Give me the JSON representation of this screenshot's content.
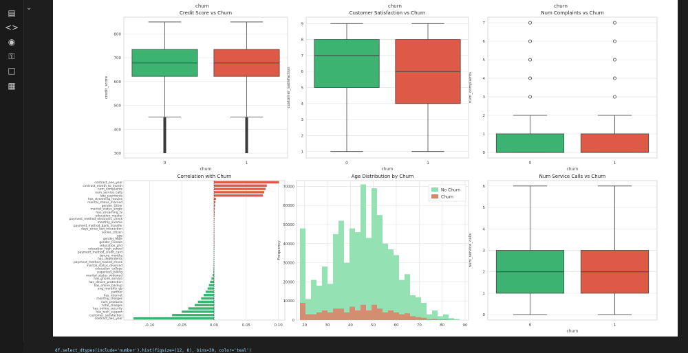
{
  "notebook": {
    "top_captions": [
      "churn",
      "churn",
      "churn"
    ],
    "code_line": "df.select_dtypes(include='number').hist(figsize=(12, 8), bins=30, color='teal')",
    "sidebar_icons": [
      "file-icon",
      "code-icon",
      "variables-icon",
      "key-icon",
      "folder-icon",
      "table-icon"
    ]
  },
  "colors": {
    "green": "#3cb371",
    "red": "#dc5a46",
    "green_light": "#8ee0b0",
    "red_light": "#d9856a"
  },
  "chart_data": [
    {
      "type": "box",
      "title": "Credit Score vs Churn",
      "xlabel": "churn",
      "ylabel": "credit_score",
      "categories": [
        "0",
        "1"
      ],
      "ylim": [
        280,
        870
      ],
      "yticks": [
        300,
        400,
        500,
        600,
        700,
        800
      ],
      "boxes": [
        {
          "q1": 622,
          "median": 678,
          "q3": 735,
          "whislo": 452,
          "whishi": 850,
          "outliers": [
            300,
            450
          ]
        },
        {
          "q1": 622,
          "median": 678,
          "q3": 735,
          "whislo": 452,
          "whishi": 850,
          "outliers": [
            300,
            450
          ]
        }
      ]
    },
    {
      "type": "box",
      "title": "Customer Satisfaction vs Churn",
      "xlabel": "churn",
      "ylabel": "customer_satisfaction",
      "categories": [
        "0",
        "1"
      ],
      "ylim": [
        0.6,
        9.4
      ],
      "yticks": [
        1,
        2,
        3,
        4,
        5,
        6,
        7,
        8,
        9
      ],
      "boxes": [
        {
          "q1": 5,
          "median": 7,
          "q3": 8,
          "whislo": 1,
          "whishi": 9,
          "outliers": []
        },
        {
          "q1": 4,
          "median": 6,
          "q3": 8,
          "whislo": 1,
          "whishi": 9,
          "outliers": []
        }
      ]
    },
    {
      "type": "box",
      "title": "Num Complaints vs Churn",
      "xlabel": "churn",
      "ylabel": "num_complaints",
      "categories": [
        "0",
        "1"
      ],
      "ylim": [
        -0.3,
        7.3
      ],
      "yticks": [
        0,
        1,
        2,
        3,
        4,
        5,
        6,
        7
      ],
      "boxes": [
        {
          "q1": 0,
          "median": 0,
          "q3": 1,
          "whislo": 0,
          "whishi": 2,
          "outliers": [
            3,
            4,
            5,
            6,
            7
          ]
        },
        {
          "q1": 0,
          "median": 0,
          "q3": 1,
          "whislo": 0,
          "whishi": 2,
          "outliers": [
            3,
            4,
            5,
            6,
            7
          ]
        }
      ]
    },
    {
      "type": "bar",
      "orientation": "horizontal",
      "title": "Correlation with Churn",
      "xlim": [
        -0.14,
        0.11
      ],
      "xticks": [
        -0.1,
        -0.05,
        0.0,
        0.05,
        0.1
      ],
      "categories": [
        "contract_one_year",
        "contract_month_to_month",
        "num_complaints",
        "num_service_calls",
        "late_payments",
        "has_streaming_movies",
        "marital_status_married",
        "gender_Other",
        "marital_status_single",
        "has_streaming_tv",
        "education_master",
        "payment_method_electronic_check",
        "monthly_income",
        "payment_method_bank_transfer",
        "days_since_last_interaction",
        "senior_citizen",
        "age",
        "gender_Male",
        "gender_Female",
        "education_phd",
        "education_high_school",
        "payment_method_credit_card",
        "tenure_months",
        "has_dependents",
        "payment_method_mailed_check",
        "marital_status_divorced",
        "education_college",
        "paperless_billing",
        "marital_status_widowed",
        "has_phone_service",
        "has_device_protection",
        "has_online_backup",
        "avg_monthly_gb",
        "partner",
        "has_internet",
        "monthly_charges",
        "num_products",
        "total_charges",
        "has_online_security",
        "has_tech_support",
        "customer_satisfaction",
        "contract_two_year"
      ],
      "values": [
        0.101,
        0.082,
        0.08,
        0.078,
        0.076,
        0.003,
        0.002,
        0.0015,
        0.0012,
        0.001,
        0.0008,
        0.0006,
        0.0005,
        0.0004,
        0.0003,
        0.0002,
        0.0001,
        0.0001,
        0.0,
        0.0,
        -0.0001,
        -0.0002,
        -0.0002,
        -0.0003,
        -0.0004,
        -0.0005,
        -0.0007,
        -0.001,
        -0.002,
        -0.004,
        -0.006,
        -0.008,
        -0.01,
        -0.013,
        -0.016,
        -0.02,
        -0.025,
        -0.03,
        -0.04,
        -0.05,
        -0.065,
        -0.125
      ]
    },
    {
      "type": "histogram",
      "title": "Age Distribution by Churn",
      "xlabel": "",
      "ylabel": "Frequency",
      "xlim": [
        16.5,
        91.5
      ],
      "ylim": [
        0,
        73000
      ],
      "bin_start": 18,
      "bin_width": 2.4,
      "xticks": [
        20,
        30,
        40,
        50,
        60,
        70,
        80,
        90
      ],
      "yticks": [
        0,
        10000,
        20000,
        30000,
        40000,
        50000,
        60000,
        70000
      ],
      "legend_position": "top-right",
      "series": [
        {
          "name": "No Churn",
          "values": [
            48000,
            11000,
            21000,
            18000,
            28000,
            19000,
            45000,
            52000,
            30000,
            48000,
            46000,
            71000,
            43000,
            69000,
            55000,
            40000,
            37000,
            34000,
            21000,
            24000,
            13000,
            12000,
            9000,
            3000,
            5000,
            2000,
            3000,
            1000,
            500,
            0
          ]
        },
        {
          "name": "Churn",
          "values": [
            9000,
            3000,
            3000,
            4000,
            5000,
            4000,
            6000,
            6000,
            4000,
            7000,
            5000,
            8000,
            5000,
            8000,
            6000,
            4000,
            5000,
            4000,
            3000,
            3500,
            2000,
            1500,
            1200,
            400,
            600,
            300,
            300,
            100,
            50,
            0
          ]
        }
      ]
    },
    {
      "type": "box",
      "title": "Num Service Calls vs Churn",
      "xlabel": "churn",
      "ylabel": "num_service_calls",
      "categories": [
        "0",
        "1"
      ],
      "ylim": [
        -0.25,
        6.25
      ],
      "yticks": [
        0,
        1,
        2,
        3,
        4,
        5,
        6
      ],
      "boxes": [
        {
          "q1": 1,
          "median": 2,
          "q3": 3,
          "whislo": 0,
          "whishi": 6,
          "outliers": []
        },
        {
          "q1": 1,
          "median": 2,
          "q3": 3,
          "whislo": 0,
          "whishi": 6,
          "outliers": []
        }
      ]
    }
  ]
}
